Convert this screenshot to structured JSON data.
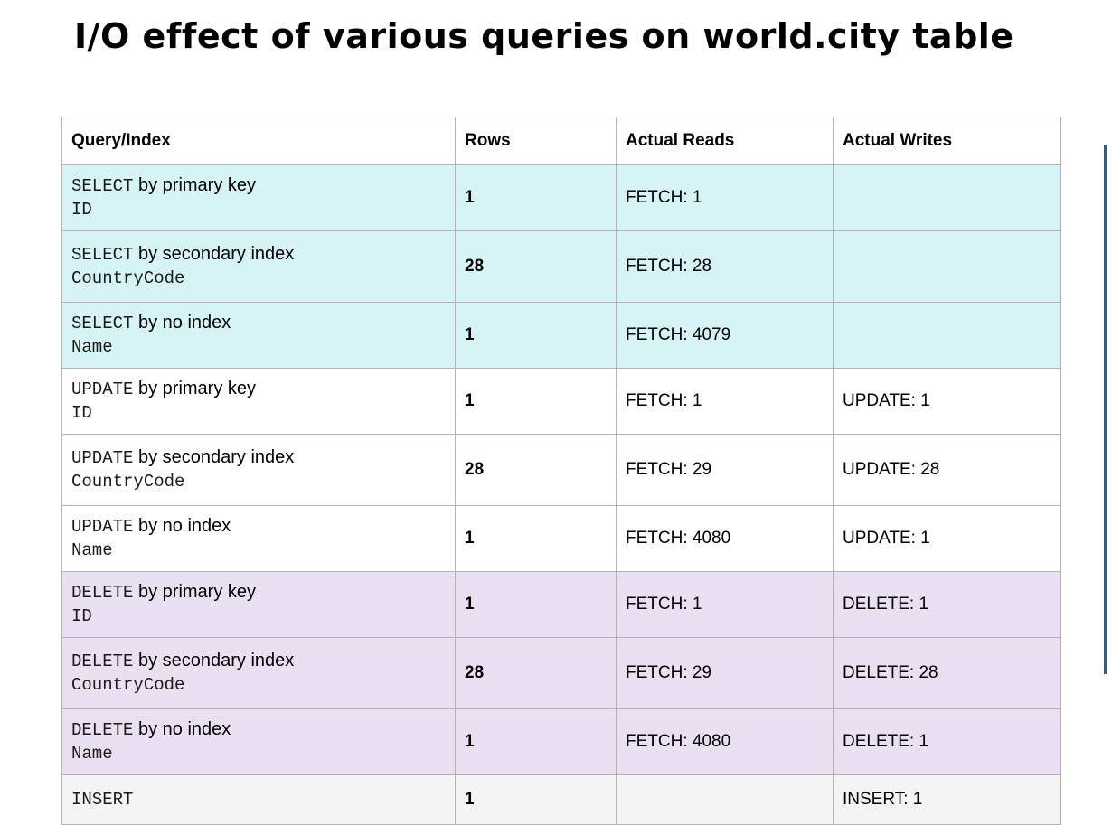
{
  "title": "I/O effect of various queries on world.city table",
  "headers": [
    "Query/Index",
    "Rows",
    "Actual Reads",
    "Actual Writes"
  ],
  "rows": [
    {
      "group": "select",
      "kw": "SELECT",
      "desc": " by primary key",
      "col": "ID",
      "rows": "1",
      "reads": "FETCH: 1",
      "reads_hot": false,
      "writes": ""
    },
    {
      "group": "select",
      "kw": "SELECT",
      "desc": " by secondary index",
      "col": "CountryCode",
      "rows": "28",
      "reads": "FETCH: 28",
      "reads_hot": false,
      "writes": ""
    },
    {
      "group": "select",
      "kw": "SELECT",
      "desc": " by no index",
      "col": "Name",
      "rows": "1",
      "reads": "FETCH: 4079",
      "reads_hot": true,
      "writes": ""
    },
    {
      "group": "update",
      "kw": "UPDATE",
      "desc": " by primary key",
      "col": "ID",
      "rows": "1",
      "reads": "FETCH: 1",
      "reads_hot": false,
      "writes": "UPDATE: 1"
    },
    {
      "group": "update",
      "kw": "UPDATE",
      "desc": " by secondary index",
      "col": "CountryCode",
      "rows": "28",
      "reads": "FETCH: 29",
      "reads_hot": false,
      "writes": "UPDATE: 28"
    },
    {
      "group": "update",
      "kw": "UPDATE",
      "desc": " by no index",
      "col": "Name",
      "rows": "1",
      "reads": "FETCH: 4080",
      "reads_hot": true,
      "writes": "UPDATE: 1"
    },
    {
      "group": "delete",
      "kw": "DELETE",
      "desc": " by primary key",
      "col": "ID",
      "rows": "1",
      "reads": "FETCH: 1",
      "reads_hot": false,
      "writes": "DELETE: 1"
    },
    {
      "group": "delete",
      "kw": "DELETE",
      "desc": " by secondary index",
      "col": "CountryCode",
      "rows": "28",
      "reads": "FETCH: 29",
      "reads_hot": false,
      "writes": "DELETE: 28"
    },
    {
      "group": "delete",
      "kw": "DELETE",
      "desc": " by no index",
      "col": "Name",
      "rows": "1",
      "reads": "FETCH: 4080",
      "reads_hot": true,
      "writes": "DELETE: 1"
    },
    {
      "group": "insert",
      "kw": "INSERT",
      "desc": "",
      "col": "",
      "rows": "1",
      "reads": "",
      "reads_hot": false,
      "writes": "INSERT: 1"
    }
  ],
  "colors": {
    "select_bg": "#d6f3f5",
    "update_bg": "#ffffff",
    "delete_bg": "#ebe0f1",
    "insert_bg": "#f4f4f4",
    "hot_fetch": "#b01818"
  }
}
